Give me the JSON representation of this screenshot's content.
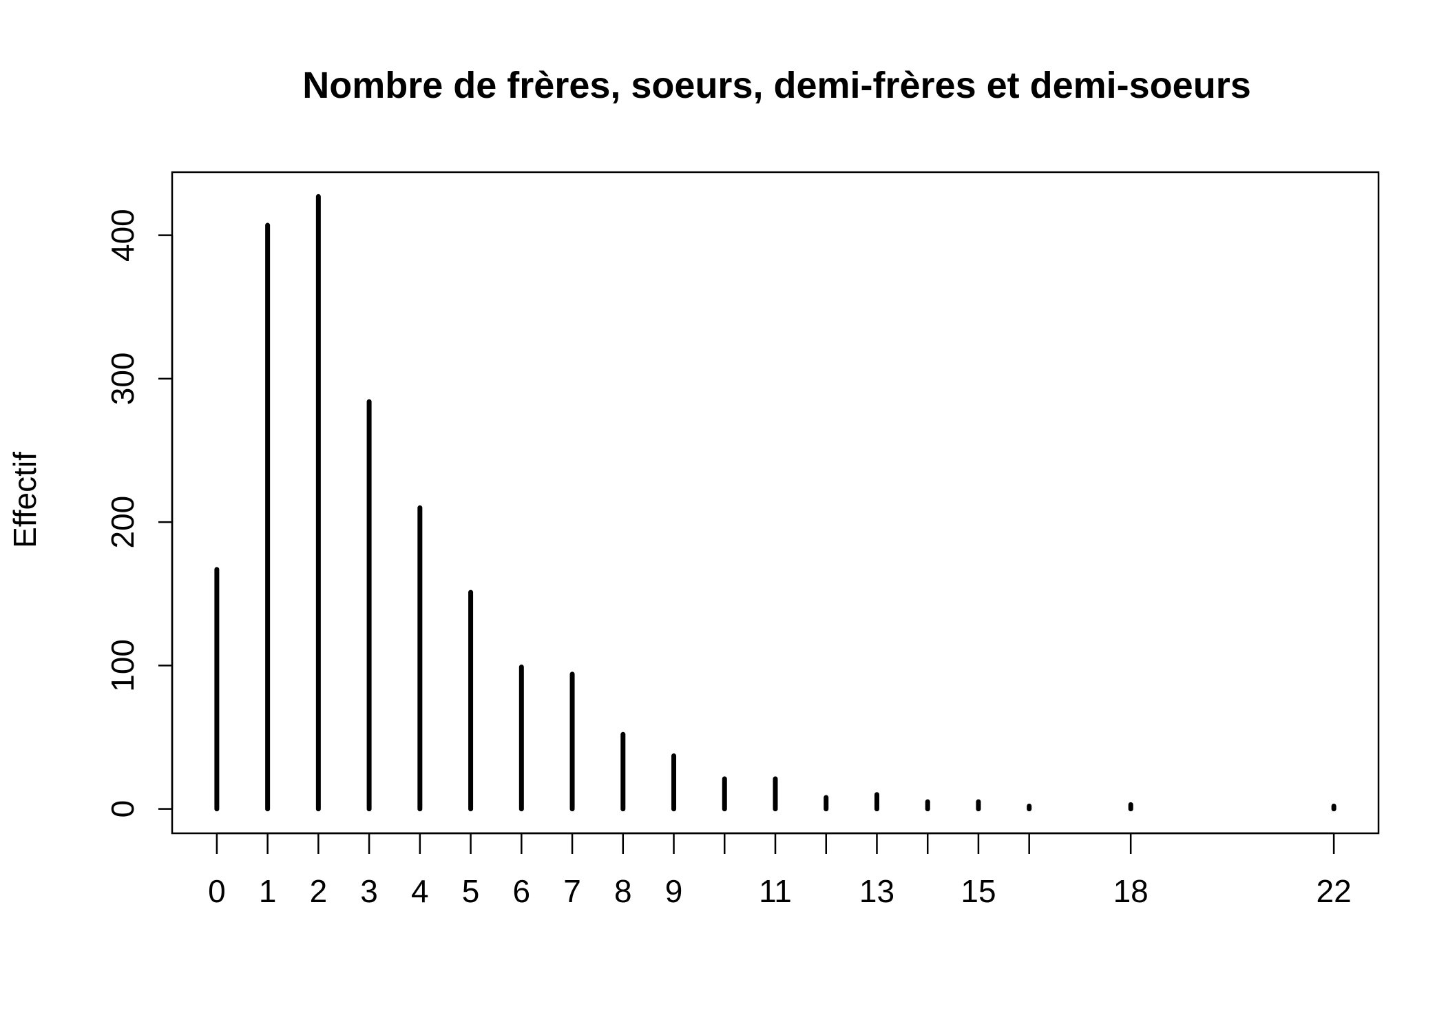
{
  "chart_data": {
    "type": "bar",
    "title": "Nombre de frères, soeurs, demi-frères et demi-soeurs",
    "xlabel": "",
    "ylabel": "Effectif",
    "x": [
      0,
      1,
      2,
      3,
      4,
      5,
      6,
      7,
      8,
      9,
      10,
      11,
      12,
      13,
      14,
      15,
      16,
      18,
      22
    ],
    "values": [
      167,
      407,
      427,
      284,
      210,
      151,
      99,
      94,
      52,
      37,
      21,
      21,
      8,
      10,
      5,
      5,
      2,
      3,
      2
    ],
    "xlim": [
      -0.88,
      22.88
    ],
    "ylim": [
      -17,
      444
    ],
    "x_tick_labels": [
      "0",
      "1",
      "2",
      "3",
      "4",
      "5",
      "6",
      "7",
      "8",
      "9",
      "",
      "11",
      "",
      "13",
      "",
      "15",
      "",
      "18",
      "22"
    ],
    "y_ticks": [
      0,
      100,
      200,
      300,
      400
    ],
    "grid": false,
    "bar_color": "#000000"
  }
}
